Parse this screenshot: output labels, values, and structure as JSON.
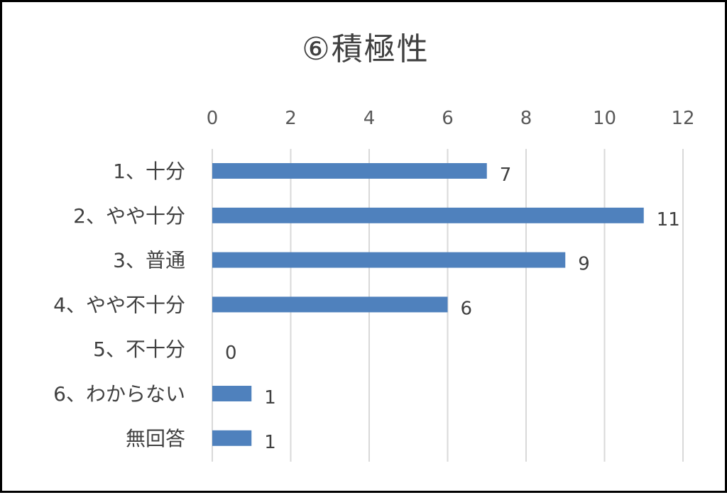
{
  "chart_data": {
    "type": "bar",
    "orientation": "horizontal",
    "title": "⑥積極性",
    "categories": [
      "1、十分",
      "2、やや十分",
      "3、普通",
      "4、やや不十分",
      "5、不十分",
      "6、わからない",
      "無回答"
    ],
    "values": [
      7,
      11,
      9,
      6,
      0,
      1,
      1
    ],
    "xlim": [
      0,
      12
    ],
    "xticks": [
      0,
      2,
      4,
      6,
      8,
      10,
      12
    ],
    "axis_position": "top",
    "grid": true,
    "legend": "none",
    "data_labels": true,
    "colors": {
      "bar": "#4f81bd",
      "grid": "#d9d9d9"
    }
  }
}
